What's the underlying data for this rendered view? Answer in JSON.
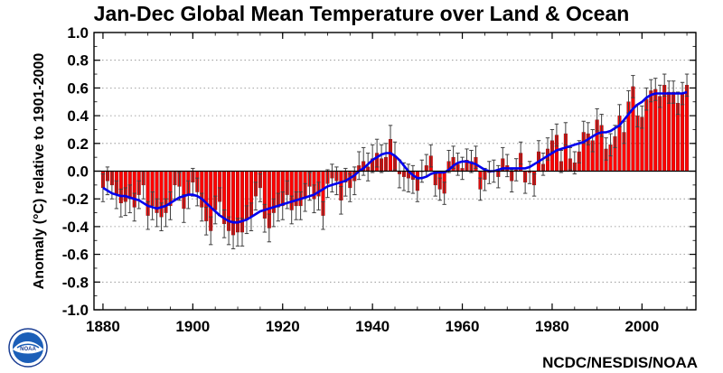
{
  "chart_data": {
    "type": "bar",
    "title": "Jan-Dec Global Mean Temperature over Land & Ocean",
    "xlabel": "",
    "ylabel": "Anomaly (°C) relative to 1901-2000",
    "xlim": [
      1878,
      2012
    ],
    "ylim": [
      -1.0,
      1.0
    ],
    "x_ticks": [
      "1880",
      "1900",
      "1920",
      "1940",
      "1960",
      "1980",
      "2000"
    ],
    "y_ticks": [
      "1.0",
      "0.8",
      "0.6",
      "0.4",
      "0.2",
      "0.0",
      "-0.2",
      "-0.4",
      "-0.6",
      "-0.8",
      "-1.0"
    ],
    "grid": "horizontal dotted",
    "x": [
      1880,
      1881,
      1882,
      1883,
      1884,
      1885,
      1886,
      1887,
      1888,
      1889,
      1890,
      1891,
      1892,
      1893,
      1894,
      1895,
      1896,
      1897,
      1898,
      1899,
      1900,
      1901,
      1902,
      1903,
      1904,
      1905,
      1906,
      1907,
      1908,
      1909,
      1910,
      1911,
      1912,
      1913,
      1914,
      1915,
      1916,
      1917,
      1918,
      1919,
      1920,
      1921,
      1922,
      1923,
      1924,
      1925,
      1926,
      1927,
      1928,
      1929,
      1930,
      1931,
      1932,
      1933,
      1934,
      1935,
      1936,
      1937,
      1938,
      1939,
      1940,
      1941,
      1942,
      1943,
      1944,
      1945,
      1946,
      1947,
      1948,
      1949,
      1950,
      1951,
      1952,
      1953,
      1954,
      1955,
      1956,
      1957,
      1958,
      1959,
      1960,
      1961,
      1962,
      1963,
      1964,
      1965,
      1966,
      1967,
      1968,
      1969,
      1970,
      1971,
      1972,
      1973,
      1974,
      1975,
      1976,
      1977,
      1978,
      1979,
      1980,
      1981,
      1982,
      1983,
      1984,
      1985,
      1986,
      1987,
      1988,
      1989,
      1990,
      1991,
      1992,
      1993,
      1994,
      1995,
      1996,
      1997,
      1998,
      1999,
      2000,
      2001,
      2002,
      2003,
      2004,
      2005,
      2006,
      2007,
      2008,
      2009,
      2010
    ],
    "series": [
      {
        "values": [
          -0.12,
          -0.07,
          -0.1,
          -0.17,
          -0.23,
          -0.22,
          -0.2,
          -0.26,
          -0.17,
          -0.1,
          -0.32,
          -0.25,
          -0.3,
          -0.33,
          -0.3,
          -0.25,
          -0.1,
          -0.11,
          -0.27,
          -0.17,
          -0.08,
          -0.15,
          -0.26,
          -0.36,
          -0.43,
          -0.28,
          -0.22,
          -0.38,
          -0.43,
          -0.46,
          -0.44,
          -0.44,
          -0.35,
          -0.33,
          -0.18,
          -0.12,
          -0.34,
          -0.41,
          -0.3,
          -0.26,
          -0.25,
          -0.17,
          -0.28,
          -0.25,
          -0.25,
          -0.19,
          -0.11,
          -0.2,
          -0.18,
          -0.32,
          -0.09,
          -0.05,
          -0.07,
          -0.21,
          -0.08,
          -0.12,
          -0.07,
          0.04,
          0.07,
          0.03,
          0.09,
          0.13,
          0.09,
          0.1,
          0.23,
          0.11,
          -0.02,
          -0.04,
          -0.05,
          -0.06,
          -0.14,
          0.0,
          0.04,
          0.11,
          -0.1,
          -0.13,
          -0.16,
          0.07,
          0.1,
          0.05,
          0.02,
          0.08,
          0.07,
          0.1,
          -0.13,
          -0.06,
          -0.01,
          0.0,
          -0.04,
          0.09,
          0.04,
          -0.07,
          0.01,
          0.13,
          -0.08,
          -0.01,
          -0.1,
          0.14,
          0.05,
          0.16,
          0.22,
          0.26,
          0.07,
          0.27,
          0.09,
          0.06,
          0.14,
          0.28,
          0.27,
          0.22,
          0.37,
          0.33,
          0.16,
          0.19,
          0.25,
          0.4,
          0.28,
          0.5,
          0.61,
          0.4,
          0.39,
          0.52,
          0.58,
          0.59,
          0.54,
          0.62,
          0.57,
          0.57,
          0.49,
          0.56,
          0.62
        ]
      },
      {
        "values": [
          -0.12,
          -0.14,
          -0.16,
          -0.17,
          -0.18,
          -0.18,
          -0.19,
          -0.2,
          -0.21,
          -0.23,
          -0.25,
          -0.26,
          -0.27,
          -0.26,
          -0.25,
          -0.23,
          -0.21,
          -0.19,
          -0.18,
          -0.17,
          -0.17,
          -0.18,
          -0.2,
          -0.23,
          -0.26,
          -0.29,
          -0.32,
          -0.34,
          -0.36,
          -0.37,
          -0.37,
          -0.36,
          -0.35,
          -0.33,
          -0.31,
          -0.29,
          -0.28,
          -0.27,
          -0.26,
          -0.25,
          -0.24,
          -0.23,
          -0.22,
          -0.21,
          -0.2,
          -0.19,
          -0.18,
          -0.17,
          -0.15,
          -0.13,
          -0.11,
          -0.1,
          -0.09,
          -0.08,
          -0.07,
          -0.05,
          -0.03,
          0.0,
          0.02,
          0.05,
          0.08,
          0.1,
          0.12,
          0.13,
          0.13,
          0.11,
          0.08,
          0.04,
          0.0,
          -0.03,
          -0.05,
          -0.05,
          -0.04,
          -0.02,
          -0.01,
          -0.01,
          -0.01,
          0.01,
          0.04,
          0.06,
          0.07,
          0.07,
          0.06,
          0.05,
          0.03,
          0.01,
          0.0,
          0.0,
          0.01,
          0.02,
          0.02,
          0.02,
          0.02,
          0.02,
          0.02,
          0.03,
          0.05,
          0.07,
          0.09,
          0.11,
          0.13,
          0.15,
          0.16,
          0.17,
          0.18,
          0.19,
          0.2,
          0.21,
          0.23,
          0.25,
          0.27,
          0.28,
          0.28,
          0.29,
          0.31,
          0.33,
          0.37,
          0.41,
          0.45,
          0.48,
          0.5,
          0.53,
          0.55,
          0.56,
          0.56,
          0.56,
          0.56,
          0.56,
          0.56,
          0.56,
          0.57
        ]
      }
    ],
    "colors": {
      "bars": "#ff0000",
      "bar_edge": "#7a0000",
      "smooth": "#0000ee",
      "error": "#404040",
      "grid": "#888888"
    }
  },
  "logo": {
    "text": "NOAA",
    "icon": "noaa-logo"
  },
  "credit": "NCDC/NESDIS/NOAA"
}
